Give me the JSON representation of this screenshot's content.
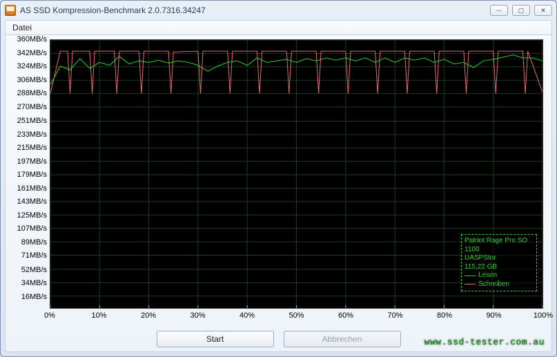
{
  "window": {
    "title": "AS SSD Kompression-Benchmark 2.0.7316.34247",
    "controls": {
      "minimize": "─",
      "maximize": "▢",
      "close": "✕"
    }
  },
  "menu": {
    "file": "Datei"
  },
  "chart": {
    "type": "line",
    "background_color": "#000000",
    "grid_color": "#1c3a1c",
    "tick_color": "#b0b0b0",
    "y_axis": {
      "min": 0,
      "max": 360,
      "ticks": [
        360,
        342,
        324,
        306,
        288,
        270,
        251,
        233,
        215,
        197,
        179,
        161,
        143,
        125,
        107,
        89,
        71,
        52,
        34,
        16
      ],
      "tick_labels": [
        "360MB/s",
        "342MB/s",
        "324MB/s",
        "306MB/s",
        "288MB/s",
        "270MB/s",
        "251MB/s",
        "233MB/s",
        "215MB/s",
        "197MB/s",
        "179MB/s",
        "161MB/s",
        "143MB/s",
        "125MB/s",
        "107MB/s",
        "89MB/s",
        "71MB/s",
        "52MB/s",
        "34MB/s",
        "16MB/s"
      ],
      "label_fontsize": 11
    },
    "x_axis": {
      "min": 0,
      "max": 100,
      "ticks": [
        0,
        10,
        20,
        30,
        40,
        50,
        60,
        70,
        80,
        90,
        100
      ],
      "tick_labels": [
        "0%",
        "10%",
        "20%",
        "30%",
        "40%",
        "50%",
        "60%",
        "70%",
        "80%",
        "90%",
        "100%"
      ],
      "label_fontsize": 11
    },
    "series": {
      "lesen": {
        "label": "Lesen",
        "color": "#2dd02d",
        "line_width": 1,
        "data": [
          [
            0,
            300
          ],
          [
            2,
            325
          ],
          [
            4,
            320
          ],
          [
            6,
            335
          ],
          [
            8,
            322
          ],
          [
            10,
            330
          ],
          [
            12,
            326
          ],
          [
            14,
            338
          ],
          [
            16,
            328
          ],
          [
            18,
            332
          ],
          [
            20,
            330
          ],
          [
            22,
            333
          ],
          [
            24,
            329
          ],
          [
            26,
            332
          ],
          [
            28,
            330
          ],
          [
            30,
            326
          ],
          [
            32,
            318
          ],
          [
            34,
            325
          ],
          [
            36,
            330
          ],
          [
            38,
            332
          ],
          [
            40,
            326
          ],
          [
            42,
            336
          ],
          [
            44,
            330
          ],
          [
            46,
            332
          ],
          [
            48,
            334
          ],
          [
            50,
            330
          ],
          [
            52,
            335
          ],
          [
            54,
            332
          ],
          [
            56,
            336
          ],
          [
            58,
            333
          ],
          [
            60,
            336
          ],
          [
            62,
            332
          ],
          [
            64,
            336
          ],
          [
            66,
            330
          ],
          [
            68,
            336
          ],
          [
            70,
            330
          ],
          [
            72,
            336
          ],
          [
            74,
            333
          ],
          [
            76,
            336
          ],
          [
            78,
            330
          ],
          [
            80,
            334
          ],
          [
            82,
            328
          ],
          [
            84,
            330
          ],
          [
            86,
            323
          ],
          [
            88,
            332
          ],
          [
            90,
            334
          ],
          [
            92,
            337
          ],
          [
            94,
            340
          ],
          [
            96,
            336
          ],
          [
            98,
            336
          ],
          [
            100,
            332
          ]
        ]
      },
      "schreiben": {
        "label": "Schreiben",
        "color": "#e06a7a",
        "line_width": 1,
        "data": [
          [
            0,
            288
          ],
          [
            2,
            345
          ],
          [
            3.5,
            345
          ],
          [
            4,
            288
          ],
          [
            4.5,
            345
          ],
          [
            8,
            345
          ],
          [
            8.5,
            288
          ],
          [
            9,
            345
          ],
          [
            13,
            345
          ],
          [
            13.5,
            288
          ],
          [
            14,
            345
          ],
          [
            18,
            345
          ],
          [
            18.5,
            288
          ],
          [
            19,
            345
          ],
          [
            24,
            345
          ],
          [
            24.5,
            288
          ],
          [
            25,
            344
          ],
          [
            30,
            345
          ],
          [
            30.5,
            288
          ],
          [
            31,
            345
          ],
          [
            36,
            345
          ],
          [
            36.5,
            288
          ],
          [
            37,
            345
          ],
          [
            42,
            345
          ],
          [
            42.5,
            288
          ],
          [
            43,
            345
          ],
          [
            48,
            345
          ],
          [
            48.5,
            288
          ],
          [
            49,
            345
          ],
          [
            54,
            345
          ],
          [
            54.5,
            288
          ],
          [
            55,
            345
          ],
          [
            60,
            345
          ],
          [
            60.5,
            288
          ],
          [
            61,
            345
          ],
          [
            66,
            345
          ],
          [
            66.5,
            288
          ],
          [
            67,
            345
          ],
          [
            72,
            345
          ],
          [
            72.5,
            288
          ],
          [
            73,
            345
          ],
          [
            78,
            345
          ],
          [
            78.5,
            288
          ],
          [
            79,
            345
          ],
          [
            84,
            345
          ],
          [
            84.5,
            288
          ],
          [
            85,
            345
          ],
          [
            90,
            345
          ],
          [
            90.5,
            288
          ],
          [
            91,
            345
          ],
          [
            96,
            345
          ],
          [
            96.5,
            288
          ],
          [
            97,
            345
          ],
          [
            100,
            290
          ]
        ]
      }
    }
  },
  "legend": {
    "border_color": "#2dd02d",
    "text_color": "#2dd02d",
    "line1": "Patriot Rage Pro SO",
    "line2": "1100",
    "line3": "UASPStor",
    "line4": "115,22 GB",
    "entries": [
      {
        "color": "#2dd02d",
        "label": "Lesen"
      },
      {
        "color": "#e06a7a",
        "label": "Schreiben"
      }
    ]
  },
  "buttons": {
    "start": "Start",
    "cancel": "Abbrechen"
  },
  "watermark": "www.ssd-tester.com.au"
}
